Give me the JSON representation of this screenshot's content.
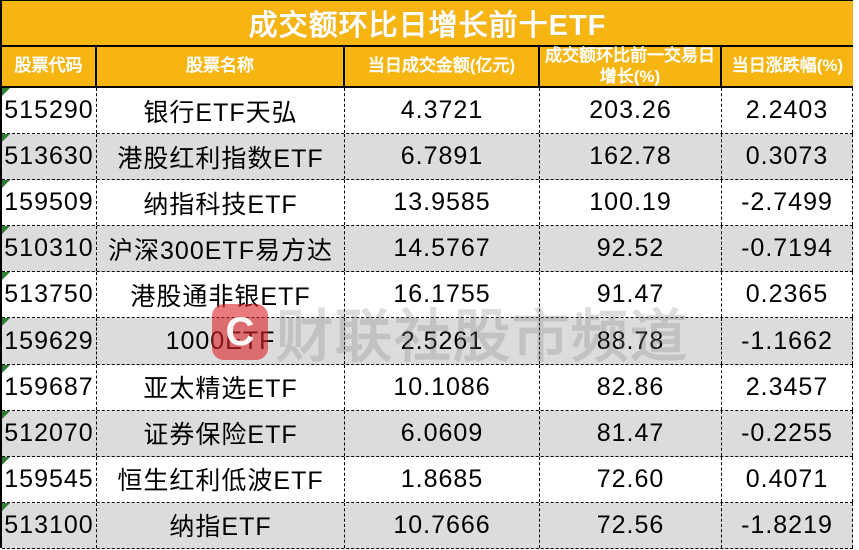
{
  "title": "成交额环比日增长前十ETF",
  "watermark": {
    "logo_glyph": "C",
    "text": "财联社股市频道"
  },
  "colors": {
    "header_bg": "#F7B512",
    "header_text": "#FFFFFF",
    "row_alt_bg": "#DCDCDC",
    "row_bg": "#FFFFFF",
    "border": "#000000",
    "green_indicator": "#2E7D32",
    "watermark_red": "#DB232A"
  },
  "chart_data": {
    "type": "table",
    "title": "成交额环比日增长前十ETF",
    "columns": [
      "股票代码",
      "股票名称",
      "当日成交金额(亿元)",
      "成交额环比前一交易日增长(%)",
      "当日涨跌幅(%)"
    ],
    "rows": [
      [
        "515290",
        "银行ETF天弘",
        "4.3721",
        "203.26",
        "2.2403"
      ],
      [
        "513630",
        "港股红利指数ETF",
        "6.7891",
        "162.78",
        "0.3073"
      ],
      [
        "159509",
        "纳指科技ETF",
        "13.9585",
        "100.19",
        "-2.7499"
      ],
      [
        "510310",
        "沪深300ETF易方达",
        "14.5767",
        "92.52",
        "-0.7194"
      ],
      [
        "513750",
        "港股通非银ETF",
        "16.1755",
        "91.47",
        "0.2365"
      ],
      [
        "159629",
        "1000ETF",
        "2.5261",
        "88.78",
        "-1.1662"
      ],
      [
        "159687",
        "亚太精选ETF",
        "10.1086",
        "82.86",
        "2.3457"
      ],
      [
        "512070",
        "证券保险ETF",
        "6.0609",
        "81.47",
        "-0.2255"
      ],
      [
        "159545",
        "恒生红利低波ETF",
        "1.8685",
        "72.60",
        "0.4071"
      ],
      [
        "513100",
        "纳指ETF",
        "10.7666",
        "72.56",
        "-1.8219"
      ]
    ]
  }
}
